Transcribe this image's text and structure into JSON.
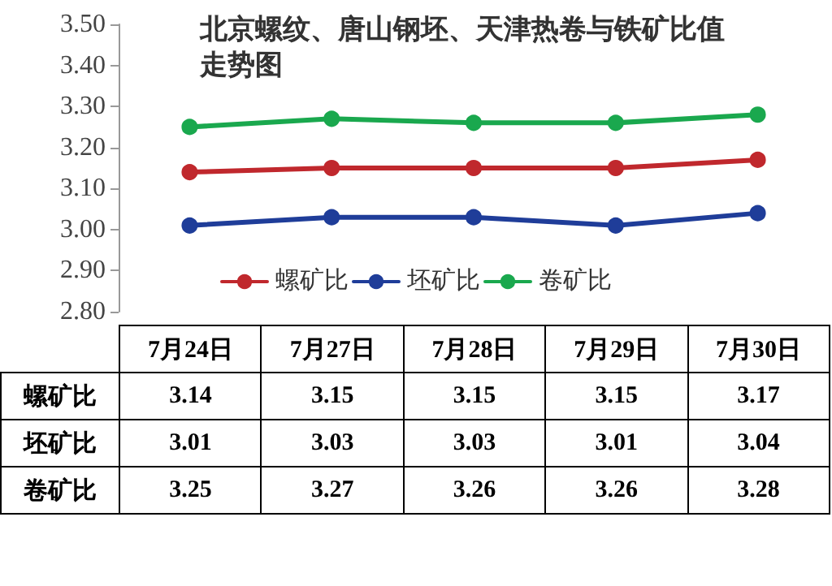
{
  "chart_data": {
    "type": "line",
    "title": "北京螺纹、唐山钢坯、天津热卷与铁矿比值走势图",
    "categories": [
      "7月24日",
      "7月27日",
      "7月28日",
      "7月29日",
      "7月30日"
    ],
    "series": [
      {
        "name": "螺矿比",
        "color": "#c0282d",
        "values": [
          3.14,
          3.15,
          3.15,
          3.15,
          3.17
        ]
      },
      {
        "name": "坯矿比",
        "color": "#1f3d99",
        "values": [
          3.01,
          3.03,
          3.03,
          3.01,
          3.04
        ]
      },
      {
        "name": "卷矿比",
        "color": "#1aa84e",
        "values": [
          3.25,
          3.27,
          3.26,
          3.26,
          3.28
        ]
      }
    ],
    "ylim": [
      2.8,
      3.5
    ],
    "yticks": [
      {
        "value": 2.8,
        "label": "2.80"
      },
      {
        "value": 2.9,
        "label": "2.90"
      },
      {
        "value": 3.0,
        "label": "3.00"
      },
      {
        "value": 3.1,
        "label": "3.10"
      },
      {
        "value": 3.2,
        "label": "3.20"
      },
      {
        "value": 3.3,
        "label": "3.30"
      },
      {
        "value": 3.4,
        "label": "3.40"
      },
      {
        "value": 3.5,
        "label": "3.50"
      }
    ],
    "grid": false,
    "legend": "bottom",
    "tick_labels": "y",
    "marker": "circle",
    "line_style": "solid",
    "data_labels": true
  }
}
